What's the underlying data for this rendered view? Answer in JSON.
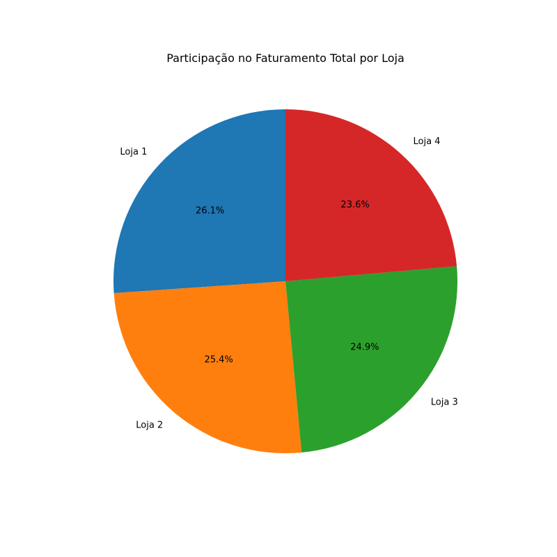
{
  "chart_data": {
    "type": "pie",
    "title": "Participação no Faturamento Total por Loja",
    "start_angle_deg": 90,
    "direction": "counterclockwise",
    "slices": [
      {
        "label": "Loja 1",
        "value": 26.1,
        "pct_label": "26.1%",
        "color": "#1f77b4"
      },
      {
        "label": "Loja 2",
        "value": 25.4,
        "pct_label": "25.4%",
        "color": "#ff7f0e"
      },
      {
        "label": "Loja 3",
        "value": 24.9,
        "pct_label": "24.9%",
        "color": "#2ca02c"
      },
      {
        "label": "Loja 4",
        "value": 23.6,
        "pct_label": "23.6%",
        "color": "#d62728"
      }
    ]
  }
}
